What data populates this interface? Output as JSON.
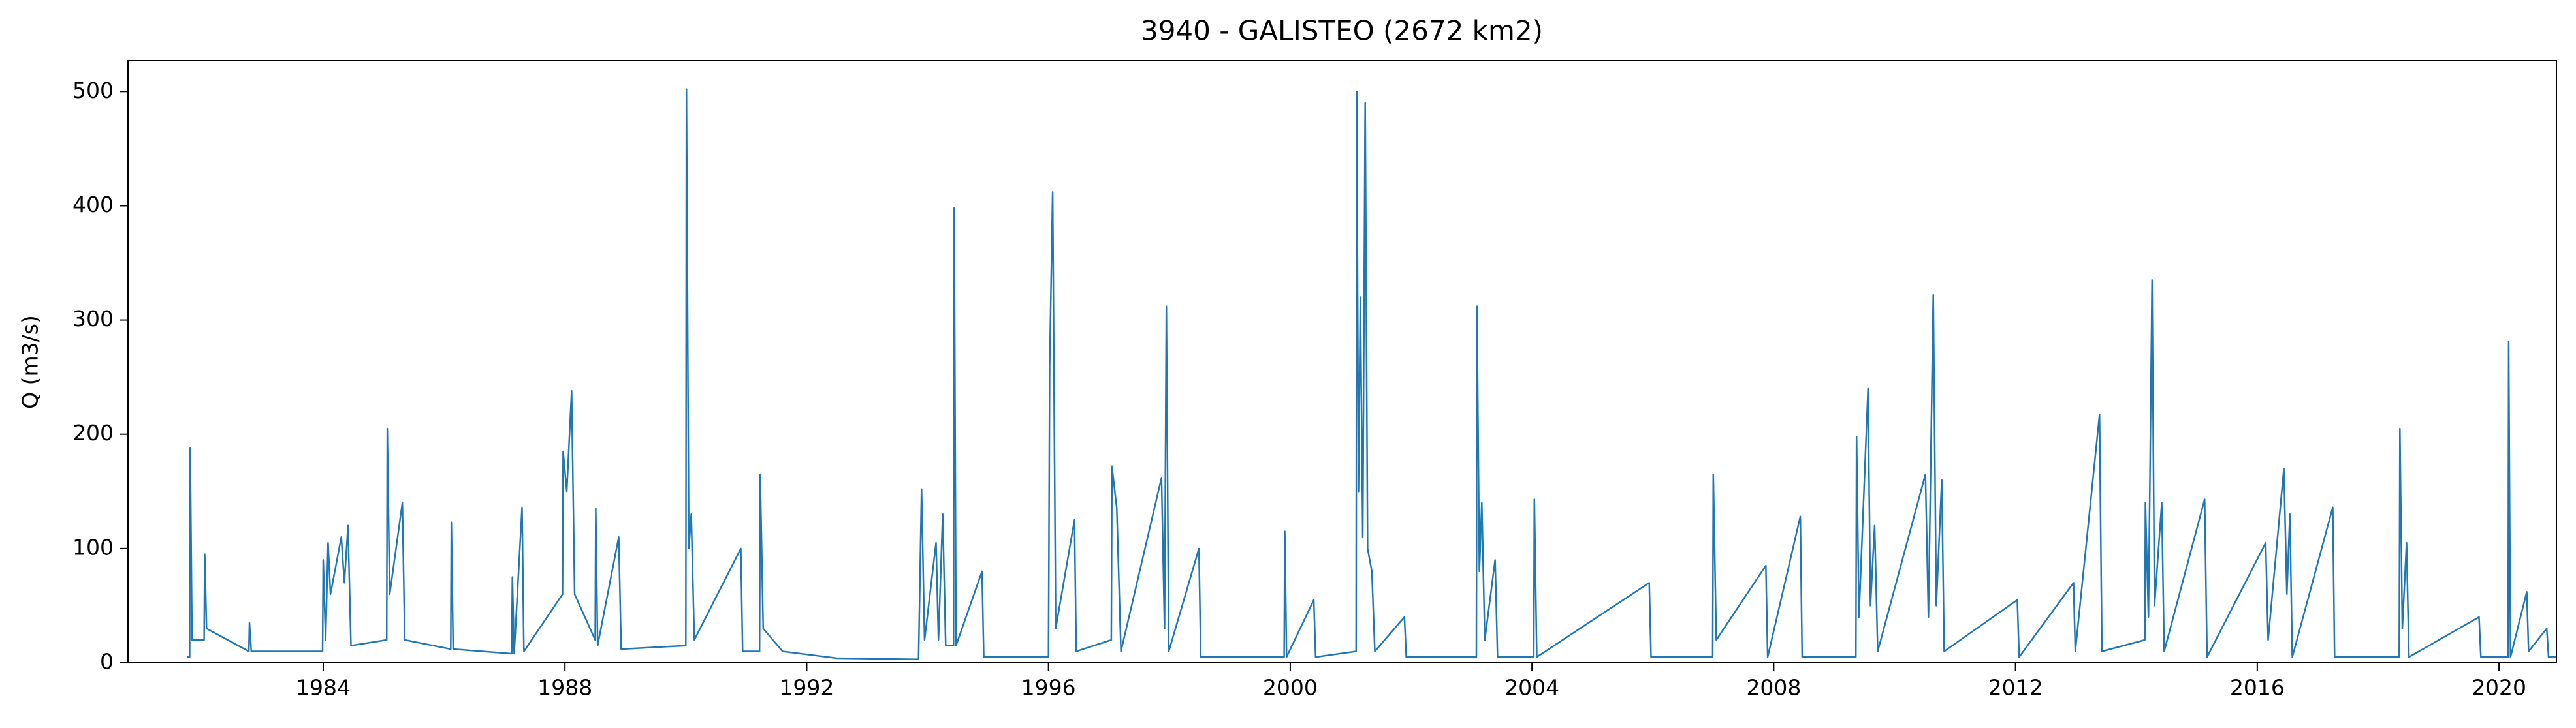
{
  "chart_data": {
    "type": "line",
    "title": "3940 - GALISTEO (2672 km2)",
    "y_label": "Q (m3/s)",
    "xlim": [
      1980.77,
      2020.95
    ],
    "xticks": [
      1984,
      1988,
      1992,
      1996,
      2000,
      2004,
      2008,
      2012,
      2016,
      2020
    ],
    "ylim": [
      0,
      527
    ],
    "yticks": [
      0,
      100,
      200,
      300,
      400,
      500
    ],
    "x": [
      1981.75,
      1981.79,
      1981.8,
      1981.83,
      1982.03,
      1982.04,
      1982.07,
      1982.77,
      1982.78,
      1982.81,
      1983.99,
      1984.0,
      1984.04,
      1984.08,
      1984.12,
      1984.3,
      1984.35,
      1984.41,
      1984.46,
      1985.05,
      1985.06,
      1985.1,
      1985.31,
      1985.35,
      1986.11,
      1986.12,
      1986.15,
      1987.12,
      1987.13,
      1987.16,
      1987.29,
      1987.32,
      1987.96,
      1987.97,
      1988.03,
      1988.11,
      1988.16,
      1988.5,
      1988.51,
      1988.54,
      1988.89,
      1988.93,
      1990.0,
      1990.01,
      1990.05,
      1990.09,
      1990.14,
      1990.91,
      1990.94,
      1991.22,
      1991.23,
      1991.28,
      1991.6,
      1992.5,
      1993.85,
      1993.9,
      1993.95,
      1994.14,
      1994.18,
      1994.25,
      1994.3,
      1994.43,
      1994.44,
      1994.47,
      1994.9,
      1994.93,
      1996.0,
      1996.02,
      1996.07,
      1996.12,
      1996.43,
      1996.46,
      1997.04,
      1997.05,
      1997.13,
      1997.2,
      1997.87,
      1997.92,
      1997.95,
      1997.99,
      1998.49,
      1998.52,
      1999.9,
      1999.91,
      1999.94,
      2000.39,
      2000.42,
      2001.09,
      2001.1,
      2001.13,
      2001.16,
      2001.2,
      2001.24,
      2001.28,
      2001.35,
      2001.4,
      2001.89,
      2001.92,
      2003.08,
      2003.09,
      2003.13,
      2003.17,
      2003.22,
      2003.39,
      2003.43,
      2004.03,
      2004.04,
      2004.08,
      2005.94,
      2005.97,
      2006.99,
      2007.0,
      2007.05,
      2007.87,
      2007.9,
      2008.44,
      2008.47,
      2009.36,
      2009.37,
      2009.41,
      2009.56,
      2009.6,
      2009.67,
      2009.72,
      2010.51,
      2010.56,
      2010.64,
      2010.69,
      2010.78,
      2010.82,
      2012.03,
      2012.06,
      2012.96,
      2012.99,
      2013.39,
      2013.43,
      2014.14,
      2014.15,
      2014.2,
      2014.26,
      2014.3,
      2014.42,
      2014.46,
      2015.13,
      2015.17,
      2016.14,
      2016.18,
      2016.44,
      2016.49,
      2016.54,
      2016.58,
      2017.25,
      2017.28,
      2018.35,
      2018.36,
      2018.4,
      2018.47,
      2018.51,
      2019.67,
      2019.7,
      2020.15,
      2020.16,
      2020.19,
      2020.46,
      2020.49,
      2020.79,
      2020.82,
      2020.95
    ],
    "series": [
      {
        "color": "#1f77b4",
        "values": [
          5,
          5,
          188,
          20,
          20,
          95,
          30,
          10,
          35,
          10,
          10,
          90,
          20,
          105,
          60,
          110,
          70,
          120,
          15,
          20,
          205,
          60,
          140,
          20,
          12,
          123,
          12,
          8,
          75,
          8,
          136,
          10,
          60,
          185,
          150,
          238,
          60,
          20,
          135,
          15,
          110,
          12,
          15,
          502,
          100,
          130,
          20,
          100,
          10,
          10,
          165,
          30,
          10,
          4,
          3,
          152,
          20,
          105,
          20,
          130,
          15,
          15,
          398,
          15,
          80,
          5,
          5,
          260,
          412,
          30,
          125,
          10,
          20,
          172,
          135,
          10,
          162,
          30,
          312,
          10,
          100,
          5,
          5,
          115,
          5,
          55,
          5,
          10,
          500,
          150,
          320,
          110,
          490,
          100,
          80,
          10,
          40,
          5,
          5,
          312,
          80,
          140,
          20,
          90,
          5,
          5,
          143,
          5,
          70,
          5,
          5,
          165,
          20,
          85,
          5,
          128,
          5,
          5,
          198,
          40,
          240,
          50,
          120,
          10,
          165,
          40,
          322,
          50,
          160,
          10,
          55,
          5,
          70,
          10,
          217,
          10,
          20,
          140,
          40,
          335,
          50,
          140,
          10,
          143,
          5,
          105,
          20,
          170,
          60,
          130,
          5,
          136,
          5,
          5,
          205,
          30,
          105,
          5,
          40,
          5,
          5,
          281,
          5,
          62,
          10,
          30,
          5,
          5
        ]
      }
    ]
  }
}
